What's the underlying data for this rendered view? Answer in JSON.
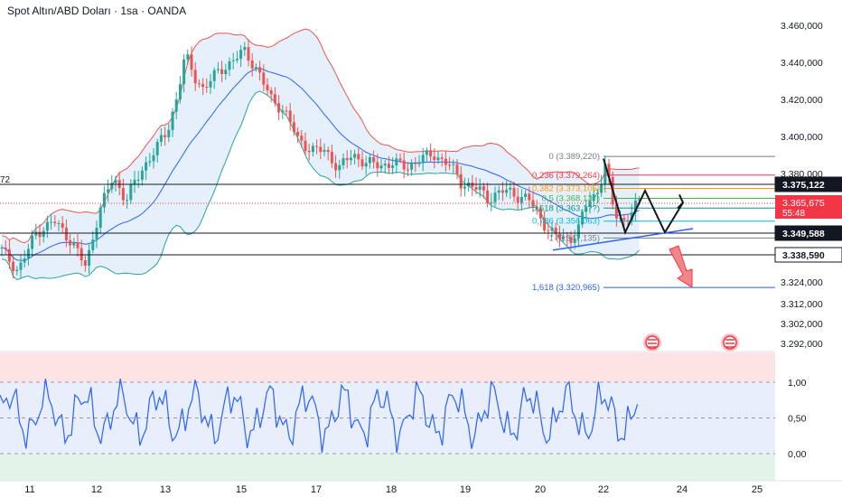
{
  "title": "Spot Altın/ABD Doları · 1sa · OANDA",
  "colors": {
    "up": "#26a69a",
    "down": "#ef5350",
    "band_fill": "#cfe4f6",
    "upper_band": "#ef5350",
    "lower_band": "#26a69a",
    "basis": "#2962ff",
    "rsi_line": "#2962ff",
    "rsi_top_fill": "#fce4e4",
    "rsi_mid_fill": "#e8eefc",
    "rsi_bot_fill": "#e4f3ea",
    "price_tag": "#f23645",
    "fib_trend": "#2962ff"
  },
  "chart_data": {
    "type": "candlestick",
    "price_axis": {
      "ticks": [
        "3.460,000",
        "3.440,000",
        "3.420,000",
        "3.400,000",
        "3.380,000",
        "3.324,000",
        "3.312,000",
        "3.302,000",
        "3.292,000"
      ],
      "tick_values": [
        3460,
        3440,
        3420,
        3400,
        3380,
        3324,
        3312,
        3302,
        3292
      ]
    },
    "dates": [
      "11",
      "12",
      "13",
      "15",
      "17",
      "18",
      "19",
      "20",
      "22",
      "24",
      "25"
    ],
    "horizontal_levels": [
      {
        "label": "3.375,122",
        "value": 3375.122,
        "color": "#131722",
        "tag_bg": "#131722",
        "tag_fg": "#ffffff"
      },
      {
        "label": "3.349,588",
        "value": 3349.588,
        "color": "#131722",
        "tag_bg": "#131722",
        "tag_fg": "#ffffff"
      },
      {
        "label": "3.338,590",
        "value": 3338.59,
        "color": "#131722",
        "tag_bg": "#ffffff",
        "tag_fg": "#131722"
      }
    ],
    "current_price": {
      "label": "3.365,675",
      "countdown": "55:48",
      "value": 3365.675
    },
    "left_cut_label": "72",
    "fibonacci": [
      {
        "ratio": "0",
        "label": "0 (3.389,220)",
        "value": 3389.22,
        "color": "#787b86"
      },
      {
        "ratio": "0.236",
        "label": "0,236 (3.379,264)",
        "value": 3379.264,
        "color": "#f23645"
      },
      {
        "ratio": "0.382",
        "label": "0,382 (3.373,105)",
        "value": 3373.105,
        "color": "#ff9800"
      },
      {
        "ratio": "0.5",
        "label": "0,5 (3.368,137)",
        "value": 3368.137,
        "color": "#4caf50"
      },
      {
        "ratio": "0.618",
        "label": "0,618 (3.363,1??)",
        "value": 3363.1,
        "color": "#089981"
      },
      {
        "ratio": "0.786",
        "label": "0,786 (3.356,063)",
        "value": 3356.063,
        "color": "#00bcd4"
      },
      {
        "ratio": "1",
        "label": "1 (3.347,135)",
        "value": 3347.135,
        "color": "#787b86"
      },
      {
        "ratio": "1.618",
        "label": "1,618 (3.320,965)",
        "value": 3320.965,
        "color": "#2962ff"
      }
    ],
    "rsi_axis": {
      "ticks": [
        "1,00",
        "0,50",
        "0,00"
      ],
      "tick_values": [
        1.0,
        0.5,
        0.0
      ]
    },
    "bollinger_bands": true,
    "projection": "zigzag then arrow down"
  }
}
